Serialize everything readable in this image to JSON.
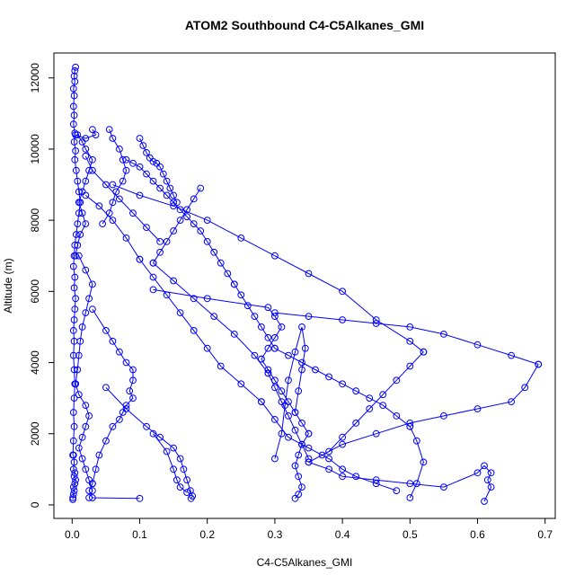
{
  "chart_data": {
    "type": "line",
    "title": "ATOM2 Southbound C4-C5Alkanes_GMI",
    "xlabel": "C4-C5Alkanes_GMI",
    "ylabel": "Altitude (m)",
    "xlim": [
      -0.027,
      0.715
    ],
    "ylim": [
      -380,
      12700
    ],
    "x_ticks": [
      0.0,
      0.1,
      0.2,
      0.3,
      0.4,
      0.5,
      0.6,
      0.7
    ],
    "x_tick_labels": [
      "0.0",
      "0.1",
      "0.2",
      "0.3",
      "0.4",
      "0.5",
      "0.6",
      "0.7"
    ],
    "y_ticks": [
      0,
      2000,
      4000,
      6000,
      8000,
      10000,
      12000
    ],
    "y_tick_labels": [
      "0",
      "2000",
      "4000",
      "6000",
      "8000",
      "10000",
      "12000"
    ],
    "grid": false,
    "legend": "none",
    "color": "#0000ff",
    "series": [
      {
        "x": [
          0.005,
          0.004,
          0.003,
          0.004,
          0.002,
          0.003,
          0.002,
          0.003,
          0.002,
          0.004,
          0.003,
          0.005,
          0.004,
          0.006,
          0.008,
          0.01,
          0.012,
          0.01,
          0.008,
          0.006,
          0.004,
          0.003,
          0.002,
          0.004,
          0.003,
          0.005,
          0.004,
          0.003,
          0.002,
          0.003,
          0.002,
          0.003,
          0.004,
          0.003,
          0.002,
          0.003,
          0.002,
          0.001
        ],
        "y": [
          12300,
          12200,
          12050,
          11900,
          11700,
          11500,
          11200,
          10950,
          10700,
          10450,
          10200,
          9950,
          9700,
          9400,
          9100,
          8800,
          8500,
          8200,
          7900,
          7600,
          7300,
          7000,
          6700,
          6400,
          6100,
          5800,
          5500,
          5200,
          4900,
          4600,
          4200,
          3800,
          3400,
          3000,
          2600,
          2200,
          1800,
          1400
        ]
      },
      {
        "x": [
          0.002,
          0.003,
          0.002,
          0.004,
          0.003,
          0.005,
          0.004,
          0.002,
          0.003,
          0.002,
          0.001,
          0.001
        ],
        "y": [
          1400,
          1200,
          1000,
          900,
          800,
          700,
          600,
          500,
          400,
          300,
          200,
          150
        ]
      },
      {
        "x": [
          0.008,
          0.015,
          0.02,
          0.03,
          0.025,
          0.02,
          0.015,
          0.01,
          0.015,
          0.02,
          0.012,
          0.008,
          0.005
        ],
        "y": [
          10400,
          10200,
          10000,
          9700,
          9400,
          9100,
          8800,
          8500,
          8200,
          7900,
          7600,
          7300,
          7000
        ]
      },
      {
        "x": [
          0.01,
          0.02,
          0.03,
          0.025,
          0.02,
          0.015,
          0.012,
          0.01,
          0.008,
          0.005
        ],
        "y": [
          7000,
          6600,
          6200,
          5800,
          5400,
          5000,
          4600,
          4200,
          3800,
          3400
        ]
      },
      {
        "x": [
          0.005,
          0.01,
          0.02,
          0.025,
          0.02,
          0.015,
          0.01,
          0.015,
          0.02,
          0.025,
          0.03,
          0.025
        ],
        "y": [
          3400,
          3100,
          2800,
          2500,
          2200,
          1900,
          1600,
          1300,
          1000,
          700,
          400,
          200
        ]
      },
      {
        "x": [
          0.055,
          0.06,
          0.07,
          0.075,
          0.08,
          0.075,
          0.065,
          0.06,
          0.055,
          0.045
        ],
        "y": [
          10550,
          10300,
          10000,
          9700,
          9400,
          9100,
          8800,
          8500,
          8200,
          7900
        ]
      },
      {
        "x": [
          0.1,
          0.105,
          0.11,
          0.115,
          0.12,
          0.125,
          0.13,
          0.135,
          0.14,
          0.145,
          0.15,
          0.155
        ],
        "y": [
          10300,
          10100,
          9900,
          9750,
          9650,
          9600,
          9500,
          9300,
          9100,
          8900,
          8700,
          8500
        ]
      },
      {
        "x": [
          0.08,
          0.09,
          0.1,
          0.11,
          0.12,
          0.13,
          0.14,
          0.15,
          0.16,
          0.17,
          0.18,
          0.19,
          0.2,
          0.21,
          0.22,
          0.23,
          0.24
        ],
        "y": [
          9700,
          9600,
          9500,
          9300,
          9100,
          8900,
          8700,
          8500,
          8300,
          8100,
          7900,
          7700,
          7400,
          7100,
          6800,
          6500,
          6200
        ]
      },
      {
        "x": [
          0.24,
          0.25,
          0.26,
          0.27,
          0.28,
          0.29,
          0.3
        ],
        "y": [
          6200,
          5900,
          5600,
          5300,
          5000,
          4700,
          4400
        ]
      },
      {
        "x": [
          0.3,
          0.32,
          0.34,
          0.36,
          0.38,
          0.4,
          0.42,
          0.44,
          0.46,
          0.48,
          0.5
        ],
        "y": [
          4400,
          4200,
          4000,
          3800,
          3600,
          3400,
          3200,
          3000,
          2800,
          2500,
          2200
        ]
      },
      {
        "x": [
          0.5,
          0.51,
          0.52,
          0.51,
          0.5
        ],
        "y": [
          2200,
          1800,
          1200,
          600,
          200
        ]
      },
      {
        "x": [
          0.12,
          0.2,
          0.29,
          0.3,
          0.31,
          0.3,
          0.29,
          0.28
        ],
        "y": [
          6050,
          5800,
          5550,
          5300,
          5000,
          4700,
          4400,
          4100
        ]
      },
      {
        "x": [
          0.28,
          0.29,
          0.3,
          0.31,
          0.32,
          0.33,
          0.34,
          0.35
        ],
        "y": [
          4100,
          3800,
          3500,
          3200,
          2900,
          2600,
          2300,
          2000
        ]
      },
      {
        "x": [
          0.35,
          0.34,
          0.335,
          0.33,
          0.335,
          0.34,
          0.335,
          0.33
        ],
        "y": [
          2000,
          1700,
          1400,
          1100,
          800,
          500,
          300,
          180
        ]
      },
      {
        "x": [
          0.3,
          0.35,
          0.4,
          0.45,
          0.5,
          0.55,
          0.6,
          0.65,
          0.69
        ],
        "y": [
          5400,
          5300,
          5200,
          5100,
          5000,
          4800,
          4500,
          4200,
          3950
        ]
      },
      {
        "x": [
          0.69,
          0.67,
          0.65,
          0.6,
          0.55,
          0.5,
          0.45,
          0.4,
          0.37,
          0.35
        ],
        "y": [
          3950,
          3300,
          2900,
          2700,
          2500,
          2300,
          2000,
          1700,
          1400,
          1200
        ]
      },
      {
        "x": [
          0.35,
          0.38,
          0.4,
          0.45,
          0.5,
          0.55,
          0.6,
          0.61,
          0.62,
          0.615,
          0.62,
          0.61
        ],
        "y": [
          1200,
          1000,
          800,
          700,
          600,
          500,
          900,
          1100,
          900,
          700,
          500,
          100
        ]
      },
      {
        "x": [
          0.3,
          0.31,
          0.315,
          0.32,
          0.33,
          0.34,
          0.345,
          0.34,
          0.335,
          0.33
        ],
        "y": [
          1300,
          2000,
          2800,
          3500,
          4300,
          5000,
          4400,
          3800,
          3200,
          2600
        ]
      },
      {
        "x": [
          0.03,
          0.05,
          0.06,
          0.07,
          0.08,
          0.09,
          0.09,
          0.085,
          0.09,
          0.08,
          0.075,
          0.07,
          0.06,
          0.05,
          0.04,
          0.035,
          0.03
        ],
        "y": [
          5500,
          4900,
          4600,
          4300,
          4000,
          3800,
          3500,
          3200,
          3000,
          2800,
          2600,
          2400,
          2200,
          1800,
          1400,
          1000,
          600
        ]
      },
      {
        "x": [
          0.03,
          0.025,
          0.03,
          0.1
        ],
        "y": [
          600,
          400,
          200,
          180
        ]
      },
      {
        "x": [
          0.05,
          0.08,
          0.11,
          0.13,
          0.15,
          0.16,
          0.165,
          0.17,
          0.175,
          0.178,
          0.176
        ],
        "y": [
          3300,
          2700,
          2200,
          1900,
          1600,
          1300,
          1000,
          700,
          400,
          250,
          180
        ]
      },
      {
        "x": [
          0.12,
          0.14,
          0.15,
          0.155,
          0.16,
          0.17
        ],
        "y": [
          2000,
          1500,
          1000,
          700,
          500,
          350
        ]
      },
      {
        "x": [
          0.02,
          0.04,
          0.06,
          0.08,
          0.1
        ],
        "y": [
          8700,
          8400,
          8000,
          7500,
          6900
        ]
      },
      {
        "x": [
          0.1,
          0.12,
          0.14,
          0.16,
          0.18,
          0.2,
          0.22,
          0.25,
          0.28
        ],
        "y": [
          6900,
          6400,
          5900,
          5400,
          4900,
          4400,
          3900,
          3400,
          2900
        ]
      },
      {
        "x": [
          0.28,
          0.3,
          0.32,
          0.35,
          0.38,
          0.4,
          0.42,
          0.45,
          0.48
        ],
        "y": [
          2900,
          2400,
          1900,
          1600,
          1300,
          1000,
          800,
          600,
          400
        ]
      },
      {
        "x": [
          0.06,
          0.1,
          0.15,
          0.2,
          0.25,
          0.3,
          0.35,
          0.4,
          0.45,
          0.5,
          0.52
        ],
        "y": [
          9000,
          8700,
          8400,
          8000,
          7500,
          7000,
          6500,
          6000,
          5200,
          4600,
          4300
        ]
      },
      {
        "x": [
          0.52,
          0.5,
          0.48,
          0.46,
          0.44,
          0.42,
          0.4,
          0.38
        ],
        "y": [
          4300,
          3900,
          3500,
          3100,
          2700,
          2300,
          1900,
          1500
        ]
      },
      {
        "x": [
          0.19,
          0.18,
          0.17,
          0.16,
          0.15,
          0.14,
          0.13,
          0.12
        ],
        "y": [
          8900,
          8600,
          8300,
          8000,
          7700,
          7400,
          7100,
          6800
        ]
      },
      {
        "x": [
          0.12,
          0.15,
          0.18,
          0.21,
          0.24,
          0.27,
          0.29
        ],
        "y": [
          6800,
          6300,
          5800,
          5300,
          4800,
          4200,
          3700
        ]
      },
      {
        "x": [
          0.29,
          0.3,
          0.31,
          0.32,
          0.33,
          0.34,
          0.35
        ],
        "y": [
          3700,
          3300,
          2900,
          2500,
          2100,
          1700,
          1300
        ]
      },
      {
        "x": [
          0.005,
          0.02,
          0.035,
          0.03
        ],
        "y": [
          10400,
          10300,
          10400,
          10550
        ]
      },
      {
        "x": [
          0.02,
          0.03,
          0.05,
          0.07,
          0.09,
          0.11,
          0.13
        ],
        "y": [
          9800,
          9400,
          9000,
          8600,
          8200,
          7800,
          7400
        ]
      }
    ]
  }
}
